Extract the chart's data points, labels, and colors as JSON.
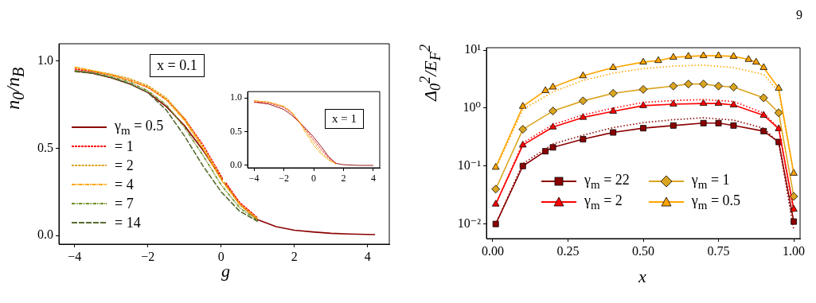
{
  "chart_data": [
    {
      "type": "line",
      "xlabel": "g",
      "ylabel": "n$_{0}$/n$_{B}$",
      "xlim": [
        -4.43,
        4.59
      ],
      "ylim": [
        -0.05,
        1.1
      ],
      "xticks": [
        {
          "value": -4,
          "label": "−4"
        },
        {
          "value": -2,
          "label": "−2"
        },
        0,
        2,
        4
      ],
      "yticks": [
        {
          "value": 0,
          "label": "0.0"
        },
        0.5,
        {
          "value": 1,
          "label": "1.0"
        }
      ],
      "legend": "left",
      "annotations": [
        "x = 0.1"
      ],
      "x": [
        -4,
        -3.5,
        -3,
        -2.5,
        -2,
        -1.5,
        -1,
        -0.5,
        0,
        0.5,
        1,
        1.5,
        2,
        2.5,
        3,
        3.5,
        4.2
      ],
      "series": [
        {
          "name": "γ$_{m}$ = 0.5",
          "color": "#8b0000",
          "line_style": "solid",
          "values": [
            0.945,
            0.93,
            0.905,
            0.87,
            0.82,
            0.74,
            0.63,
            0.49,
            0.33,
            0.18,
            0.09,
            0.05,
            0.03,
            0.02,
            0.012,
            0.008,
            0.005
          ]
        },
        {
          "name": "= 1",
          "color": "#ff0000",
          "line_style": "dashed",
          "values": [
            0.955,
            0.94,
            0.92,
            0.89,
            0.85,
            0.78,
            0.67,
            0.52,
            0.34,
            0.19,
            0.1,
            null,
            null,
            null,
            null,
            null,
            null
          ]
        },
        {
          "name": "= 2",
          "color": "#daa520",
          "line_style": "dashed",
          "values": [
            0.965,
            0.945,
            0.925,
            0.9,
            0.86,
            0.79,
            0.67,
            0.51,
            0.33,
            0.18,
            0.095,
            null,
            null,
            null,
            null,
            null,
            null
          ]
        },
        {
          "name": "= 4",
          "color": "#ffa500",
          "line_style": "dashed",
          "values": [
            0.965,
            0.945,
            0.92,
            0.89,
            0.85,
            0.78,
            0.66,
            0.5,
            0.32,
            0.18,
            0.09,
            null,
            null,
            null,
            null,
            null,
            null
          ]
        },
        {
          "name": "= 7",
          "color": "#6b8e23",
          "line_style": "dashed",
          "values": [
            0.945,
            0.935,
            0.91,
            0.88,
            0.83,
            0.75,
            0.62,
            0.46,
            0.29,
            0.16,
            0.085,
            null,
            null,
            null,
            null,
            null,
            null
          ]
        },
        {
          "name": "= 14",
          "color": "#556b2f",
          "line_style": "dashed",
          "values": [
            0.94,
            0.93,
            0.905,
            0.87,
            0.82,
            0.72,
            0.57,
            0.4,
            0.25,
            0.14,
            0.08,
            null,
            null,
            null,
            null,
            null,
            null
          ]
        }
      ]
    },
    {
      "type": "line",
      "xlim": [
        -4.43,
        4.43
      ],
      "ylim": [
        -0.036,
        1.095
      ],
      "xticks": [
        {
          "value": -4,
          "label": "−4"
        },
        {
          "value": -2,
          "label": "−2"
        },
        0,
        2,
        4
      ],
      "yticks": [
        {
          "value": 0,
          "label": "0.0"
        },
        0.5,
        {
          "value": 1,
          "label": "1.0"
        }
      ],
      "annotations": [
        "x = 1"
      ],
      "x": [
        -4,
        -3,
        -2,
        -1.5,
        -1,
        -0.5,
        0,
        0.5,
        1,
        1.5,
        2,
        3,
        4
      ],
      "series": [
        {
          "color": "#8b0000",
          "line_style": "solid",
          "values": [
            0.94,
            0.91,
            0.83,
            0.75,
            0.65,
            0.54,
            0.42,
            0.28,
            0.13,
            0.03,
            0.01,
            0,
            0
          ]
        },
        {
          "color": "#ff0000",
          "line_style": "dashed",
          "values": [
            0.94,
            0.93,
            0.86,
            0.78,
            0.65,
            0.52,
            0.38,
            0.24,
            0.11,
            0.03,
            null,
            null,
            null
          ]
        },
        {
          "color": "#daa520",
          "line_style": "dashed",
          "values": [
            0.96,
            0.94,
            0.87,
            0.79,
            0.66,
            0.5,
            0.34,
            0.2,
            0.09,
            0.02,
            null,
            null,
            null
          ]
        },
        {
          "color": "#ffa500",
          "line_style": "dashed",
          "values": [
            0.96,
            0.94,
            0.88,
            0.8,
            0.66,
            0.47,
            0.3,
            0.17,
            0.08,
            0.02,
            null,
            null,
            null
          ]
        }
      ]
    },
    {
      "type": "line",
      "xlabel": "x",
      "ylabel": "Δ$_{0}$$^{2}$/E$_{F}$$^{2}$",
      "log": "y",
      "xlim": [
        -0.021,
        1.021
      ],
      "ylim": [
        0.0056,
        11
      ],
      "xticks": [
        {
          "value": 0,
          "label": "0.00"
        },
        0.25,
        {
          "value": 0.5,
          "label": "0.50"
        },
        0.75,
        {
          "value": 1,
          "label": "1.00"
        }
      ],
      "yticks": [
        {
          "value": 0.01,
          "label": "10⁻²"
        },
        {
          "value": 0.1,
          "label": "10⁻¹"
        },
        {
          "value": 1,
          "label": "10⁰"
        },
        {
          "value": 10,
          "label": "10¹"
        }
      ],
      "legend": "lower center",
      "annotations": [
        "9"
      ],
      "series": [
        {
          "name": "γ$_{m}$ = 22",
          "color": "#8b0000",
          "marker": "square",
          "line_style": "solid",
          "x": [
            0.01,
            0.1,
            0.175,
            0.2,
            0.3,
            0.4,
            0.5,
            0.6,
            0.7,
            0.75,
            0.8,
            0.9,
            0.95,
            1.0
          ],
          "values": [
            0.01,
            0.1,
            0.18,
            0.21,
            0.29,
            0.38,
            0.45,
            0.5,
            0.55,
            0.55,
            0.5,
            0.4,
            0.26,
            0.011
          ]
        },
        {
          "name": "γ$_{m}$ = 2",
          "color": "#ff0000",
          "marker": "triangle",
          "line_style": "solid",
          "x": [
            0.01,
            0.1,
            0.2,
            0.3,
            0.4,
            0.5,
            0.6,
            0.7,
            0.75,
            0.8,
            0.9,
            0.95,
            1.0
          ],
          "values": [
            0.022,
            0.23,
            0.47,
            0.69,
            0.88,
            1.1,
            1.17,
            1.2,
            1.2,
            1.13,
            0.75,
            0.44,
            0.018
          ]
        },
        {
          "name": "γ$_{m}$ = 1",
          "color": "#daa520",
          "marker": "diamond",
          "line_style": "solid",
          "x": [
            0.01,
            0.1,
            0.2,
            0.3,
            0.4,
            0.5,
            0.6,
            0.65,
            0.7,
            0.75,
            0.8,
            0.9,
            0.95,
            1.0
          ],
          "values": [
            0.04,
            0.43,
            0.89,
            1.33,
            1.8,
            2.1,
            2.4,
            2.6,
            2.6,
            2.4,
            2.3,
            1.5,
            0.83,
            0.03
          ]
        },
        {
          "name": "γ$_{m}$ = 0.5",
          "color": "#ffa500",
          "marker": "triangle",
          "line_style": "solid",
          "x": [
            0.01,
            0.1,
            0.175,
            0.2,
            0.3,
            0.4,
            0.5,
            0.55,
            0.6,
            0.65,
            0.7,
            0.75,
            0.8,
            0.85,
            0.875,
            0.9,
            0.95,
            1.0
          ],
          "values": [
            0.095,
            1.07,
            2.0,
            2.3,
            3.6,
            5.0,
            6.2,
            6.6,
            7.5,
            7.8,
            8.0,
            8.0,
            7.8,
            6.9,
            6.2,
            5.0,
            2.2,
            0.075
          ]
        },
        {
          "color": "#8b0000",
          "marker": "none",
          "line_style": "dotted",
          "x": [
            0.01,
            0.1,
            0.2,
            0.3,
            0.4,
            0.5,
            0.6,
            0.7,
            0.8,
            0.9,
            0.95,
            1.0
          ],
          "values": [
            0.01,
            0.11,
            0.24,
            0.34,
            0.46,
            0.56,
            0.63,
            0.68,
            0.62,
            0.45,
            0.25,
            0.008
          ]
        },
        {
          "color": "#ff0000",
          "marker": "none",
          "line_style": "dotted",
          "x": [
            0.01,
            0.1,
            0.2,
            0.3,
            0.4,
            0.5,
            0.6,
            0.7,
            0.8,
            0.9,
            0.95,
            1.0
          ],
          "values": [
            0.022,
            0.25,
            0.52,
            0.76,
            1.0,
            1.25,
            1.35,
            1.4,
            1.3,
            0.82,
            0.45,
            0.016
          ]
        },
        {
          "color": "#ffa500",
          "marker": "none",
          "line_style": "dotted",
          "x": [
            0.01,
            0.1,
            0.2,
            0.3,
            0.4,
            0.5,
            0.6,
            0.7,
            0.8,
            0.9,
            0.95,
            1.0
          ],
          "values": [
            0.09,
            0.95,
            1.9,
            3.0,
            4.0,
            4.8,
            5.3,
            5.5,
            5.0,
            3.8,
            1.9,
            0.07
          ]
        }
      ]
    }
  ]
}
